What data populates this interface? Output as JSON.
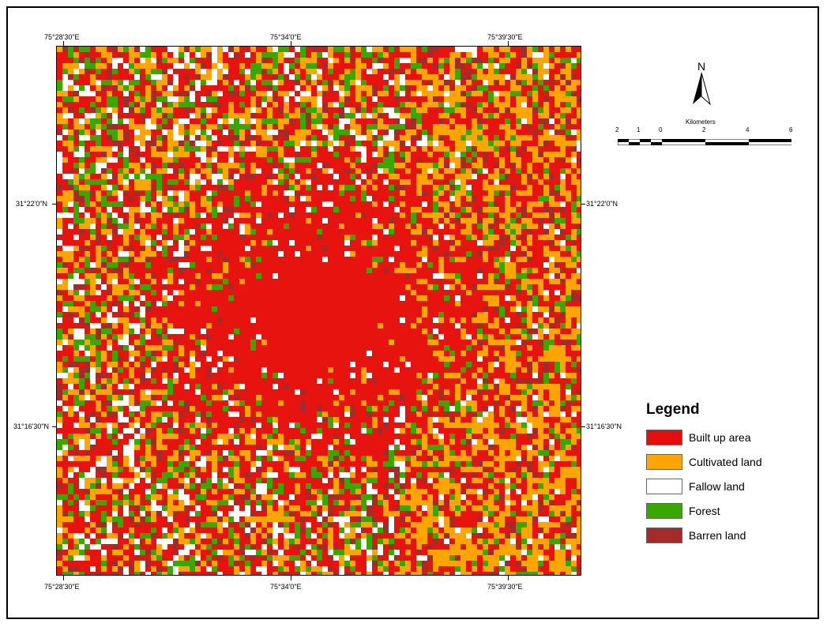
{
  "map": {
    "colors": {
      "built_up": "#e30f0f",
      "cultivated": "#ffa500",
      "fallow": "#ffffff",
      "forest": "#38a800",
      "barren": "#a52a2a"
    },
    "coords": {
      "top_left": "75°28'30\"E",
      "top_mid": "75°34'0\"E",
      "top_right": "75°39'30\"E",
      "bottom_left": "75°28'30\"E",
      "bottom_mid": "75°34'0\"E",
      "bottom_right": "75°39'30\"E",
      "left_upper": "31°22'0\"N",
      "left_lower": "31°16'30\"N",
      "right_upper": "31°22'0\"N",
      "right_lower": "31°16'30\"N"
    }
  },
  "north_arrow": {
    "label": "N"
  },
  "scale": {
    "title": "Kilometers",
    "labels": [
      "2",
      "1",
      "0",
      "2",
      "4",
      "6"
    ]
  },
  "legend": {
    "title": "Legend",
    "items": [
      {
        "label": "Built up area",
        "color": "#e30f0f"
      },
      {
        "label": "Cultivated land",
        "color": "#ffa500"
      },
      {
        "label": "Fallow land",
        "color": "#ffffff"
      },
      {
        "label": "Forest",
        "color": "#38a800"
      },
      {
        "label": "Barren land",
        "color": "#a52a2a"
      }
    ]
  }
}
